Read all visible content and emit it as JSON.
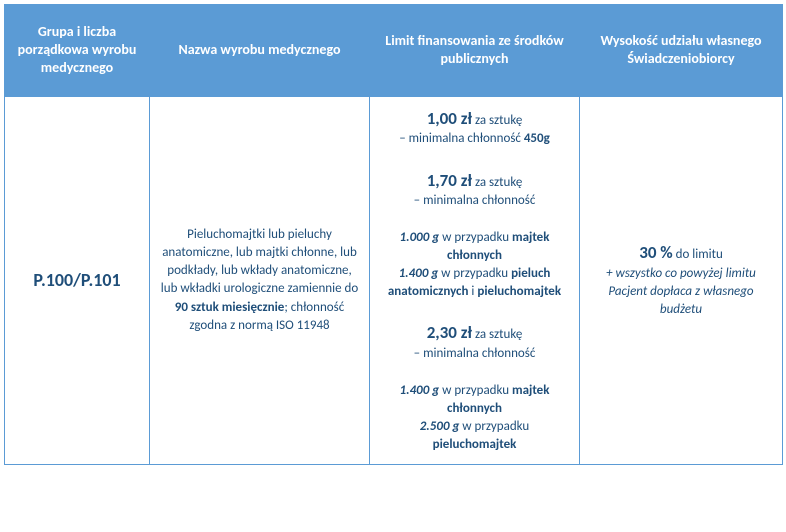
{
  "colors": {
    "header_bg": "#5b9bd5",
    "header_fg": "#ffffff",
    "border": "#5b9bd5",
    "body_text": "#1f4e79"
  },
  "headers": {
    "c1": "Grupa i liczba porządkowa wyrobu medycznego",
    "c2": "Nazwa wyrobu medycznego",
    "c3": "Limit finansowania ze środków publicznych",
    "c4": "Wysokość udziału własnego Świadczeniobiorcy"
  },
  "code": "P.100/P.101",
  "desc": {
    "p1": "Pieluchomajtki lub pieluchy anatomiczne, lub majtki chłonne, lub podkłady, lub wkłady anatomiczne, lub wkładki urologiczne zamiennie do ",
    "p1b": "90 sztuk miesięcznie",
    "p2": "; chłonność zgodna z normą ISO 11948"
  },
  "limits": {
    "r1": {
      "price": "1,00 zł",
      "per": " za sztukę",
      "sub1": " – minimalna chłonność ",
      "val1": "450g"
    },
    "r2": {
      "price": "1,70 zł",
      "per": " za sztukę",
      "sub1": " – minimalna chłonność",
      "v1": "1.000 g",
      "t1": " w przypadku ",
      "b1": "majtek chłonnych",
      "v2": "1.400 g",
      "t2": " w przypadku ",
      "b2a": "pieluch anatomicznych",
      "and": " i ",
      "b2b": "pieluchomajtek"
    },
    "r3": {
      "price": "2,30 zł",
      "per": " za sztukę",
      "sub1": " – minimalna chłonność",
      "v1": "1.400 g",
      "t1": " w przypadku ",
      "b1": "majtek chłonnych",
      "v2": "2.500 g",
      "t2": " w przypadku ",
      "b2": "pieluchomajtek"
    }
  },
  "share": {
    "pct": "30 %",
    "pct_suffix": " do limitu",
    "note": "+ wszystko co powyżej limitu Pacjent dopłaca z własnego budżetu"
  }
}
